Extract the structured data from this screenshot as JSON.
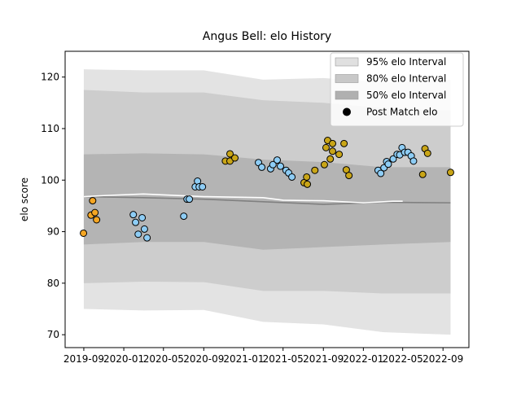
{
  "chart_data": {
    "type": "scatter",
    "title": "Angus Bell: elo History",
    "y_label": "elo score",
    "xlim": [
      "2019-07-06",
      "2022-11-19"
    ],
    "ylim": [
      67.5,
      125
    ],
    "xticks": [
      {
        "value": "2019-09-01",
        "label": "2019-09"
      },
      {
        "value": "2020-01-01",
        "label": "2020-01"
      },
      {
        "value": "2020-05-01",
        "label": "2020-05"
      },
      {
        "value": "2020-09-01",
        "label": "2020-09"
      },
      {
        "value": "2021-01-01",
        "label": "2021-01"
      },
      {
        "value": "2021-05-01",
        "label": "2021-05"
      },
      {
        "value": "2021-09-01",
        "label": "2021-09"
      },
      {
        "value": "2022-01-01",
        "label": "2022-01"
      },
      {
        "value": "2022-05-01",
        "label": "2022-05"
      },
      {
        "value": "2022-09-01",
        "label": "2022-09"
      }
    ],
    "yticks": [
      70,
      80,
      90,
      100,
      110,
      120
    ],
    "legend": "upper right",
    "bands": [
      {
        "name": "95% elo Interval",
        "color": "#e3e3e3",
        "legend_color": "#e0e0e0",
        "x": [
          "2019-09-01",
          "2020-03-01",
          "2020-09-01",
          "2021-03-01",
          "2021-09-01",
          "2022-03-01",
          "2022-09-24"
        ],
        "upper": [
          121.5,
          121.3,
          121.3,
          119.5,
          119.8,
          119,
          119.5
        ],
        "lower": [
          75,
          74.7,
          74.8,
          72.5,
          72,
          70.5,
          70
        ]
      },
      {
        "name": "80% elo Interval",
        "color": "#cdcdcd",
        "legend_color": "#c8c8c8",
        "x": [
          "2019-09-01",
          "2020-03-01",
          "2020-09-01",
          "2021-03-01",
          "2021-09-01",
          "2022-03-01",
          "2022-09-24"
        ],
        "upper": [
          117.5,
          117,
          117,
          115.5,
          115,
          114,
          113.5
        ],
        "lower": [
          80,
          80.3,
          80.2,
          78.5,
          78.5,
          78,
          78
        ]
      },
      {
        "name": "50% elo Interval",
        "color": "#b4b4b4",
        "legend_color": "#b0b0b0",
        "x": [
          "2019-09-01",
          "2020-03-01",
          "2020-09-01",
          "2021-03-01",
          "2021-09-01",
          "2022-03-01",
          "2022-09-24"
        ],
        "upper": [
          105,
          105.2,
          105,
          104,
          103.5,
          102.5,
          102.5
        ],
        "lower": [
          87.5,
          88,
          88,
          86.5,
          87,
          87.5,
          88
        ]
      }
    ],
    "lines": [
      {
        "color": "#808080",
        "x": [
          "2019-09-01",
          "2020-03-01",
          "2020-09-01",
          "2021-03-01",
          "2021-09-01",
          "2022-03-01",
          "2022-09-24"
        ],
        "values": [
          96.8,
          96.6,
          96.3,
          95.8,
          95.3,
          95.7,
          95.6
        ]
      },
      {
        "color": "#ffffff",
        "x": [
          "2019-09-01",
          "2019-11-01",
          "2020-03-01",
          "2020-09-01",
          "2021-03-01",
          "2021-05-01",
          "2021-09-01",
          "2022-01-01",
          "2022-04-01",
          "2022-05-01"
        ],
        "values": [
          96.8,
          97,
          97.3,
          96.8,
          96.6,
          96.1,
          96,
          95.6,
          95.9,
          95.9
        ]
      }
    ],
    "series": [
      {
        "name": "Post Match elo",
        "color": "#000000",
        "x": [
          "2019-08-31",
          "2019-09-23",
          "2019-09-28",
          "2019-10-05",
          "2019-10-10",
          "2020-01-30",
          "2020-02-06",
          "2020-02-14",
          "2020-02-26",
          "2020-03-04",
          "2020-03-12",
          "2020-07-02",
          "2020-07-12",
          "2020-07-19",
          "2020-08-06",
          "2020-08-13",
          "2020-08-18",
          "2020-08-28",
          "2020-11-06",
          "2020-11-20",
          "2020-11-20",
          "2020-12-05",
          "2021-02-15",
          "2021-02-25",
          "2021-03-24",
          "2021-03-31",
          "2021-04-13",
          "2021-04-23",
          "2021-05-10",
          "2021-05-18",
          "2021-05-28",
          "2021-07-04",
          "2021-07-12",
          "2021-07-14",
          "2021-08-06",
          "2021-09-04",
          "2021-09-09",
          "2021-09-14",
          "2021-09-22",
          "2021-09-29",
          "2021-09-29",
          "2021-10-19",
          "2021-11-03",
          "2021-11-10",
          "2021-11-18",
          "2022-02-15",
          "2022-02-23",
          "2022-03-05",
          "2022-03-13",
          "2022-03-18",
          "2022-04-02",
          "2022-04-14",
          "2022-04-22",
          "2022-04-29",
          "2022-05-07",
          "2022-05-17",
          "2022-05-27",
          "2022-06-03",
          "2022-07-01",
          "2022-07-08",
          "2022-07-16",
          "2022-09-24"
        ],
        "values": [
          89.7,
          93.2,
          96,
          93.7,
          92.3,
          93.3,
          91.8,
          89.5,
          92.7,
          90.5,
          88.8,
          93,
          96.3,
          96.3,
          98.7,
          99.8,
          98.7,
          98.7,
          103.7,
          105.1,
          103.7,
          104.3,
          103.4,
          102.5,
          102.2,
          103,
          103.9,
          102.7,
          101.9,
          101.4,
          100.6,
          99.5,
          100.6,
          99.2,
          101.9,
          103,
          106.3,
          107.7,
          104.1,
          107.1,
          105.6,
          105,
          107.1,
          102,
          100.9,
          101.9,
          101.3,
          102.4,
          103.6,
          103.1,
          104.1,
          105,
          104.9,
          106.3,
          105.4,
          105.4,
          104.7,
          103.7,
          101.1,
          106.1,
          105.2,
          101.5
        ],
        "colors": [
          "#f5a623",
          "#f5a623",
          "#f5a623",
          "#f5a623",
          "#f5a623",
          "#8ecdf5",
          "#8ecdf5",
          "#8ecdf5",
          "#8ecdf5",
          "#8ecdf5",
          "#8ecdf5",
          "#8ecdf5",
          "#8ecdf5",
          "#8ecdf5",
          "#8ecdf5",
          "#8ecdf5",
          "#8ecdf5",
          "#8ecdf5",
          "#c9a517",
          "#c9a517",
          "#c9a517",
          "#c9a517",
          "#8ecdf5",
          "#8ecdf5",
          "#8ecdf5",
          "#8ecdf5",
          "#8ecdf5",
          "#8ecdf5",
          "#8ecdf5",
          "#8ecdf5",
          "#8ecdf5",
          "#c9a517",
          "#c9a517",
          "#c9a517",
          "#c9a517",
          "#c9a517",
          "#c9a517",
          "#c9a517",
          "#c9a517",
          "#c9a517",
          "#c9a517",
          "#c9a517",
          "#c9a517",
          "#c9a517",
          "#c9a517",
          "#8ecdf5",
          "#8ecdf5",
          "#8ecdf5",
          "#8ecdf5",
          "#8ecdf5",
          "#8ecdf5",
          "#8ecdf5",
          "#8ecdf5",
          "#8ecdf5",
          "#8ecdf5",
          "#8ecdf5",
          "#8ecdf5",
          "#8ecdf5",
          "#c9a517",
          "#c9a517",
          "#c9a517",
          "#c9a517"
        ]
      }
    ]
  }
}
